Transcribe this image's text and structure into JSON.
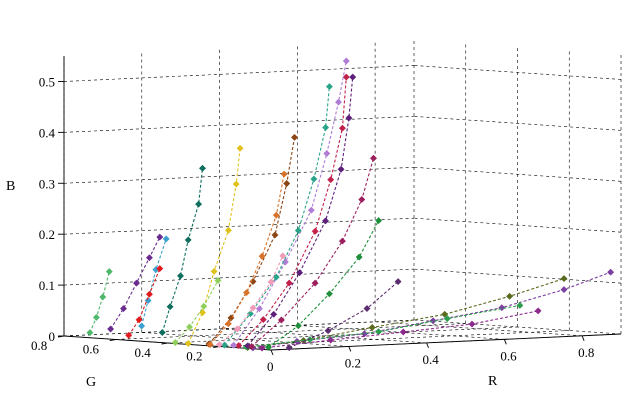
{
  "chart_data": {
    "type": "scatter",
    "projection": "3d",
    "xlabel": "R",
    "ylabel": "G",
    "zlabel": "B",
    "xlim": [
      0,
      0.9
    ],
    "ylim": [
      0,
      0.8
    ],
    "zlim": [
      0,
      0.55
    ],
    "x_ticks": [
      "0",
      "0.2",
      "0.4",
      "0.6",
      "0.8"
    ],
    "y_ticks": [
      "0.2",
      "0.4",
      "0.6",
      "0.8"
    ],
    "z_ticks": [
      "0",
      "0.1",
      "0.2",
      "0.3",
      "0.4",
      "0.5"
    ],
    "grid": true,
    "marker": "diamond",
    "line_style": "dashed",
    "series": [
      {
        "color": "#7b3fa0",
        "points": [
          [
            0.02,
            0.1,
            0.0
          ],
          [
            0.12,
            0.08,
            0.01
          ],
          [
            0.28,
            0.06,
            0.02
          ],
          [
            0.45,
            0.05,
            0.04
          ],
          [
            0.62,
            0.04,
            0.06
          ],
          [
            0.78,
            0.04,
            0.09
          ],
          [
            0.9,
            0.04,
            0.12
          ]
        ]
      },
      {
        "color": "#5a6b1e",
        "points": [
          [
            0.02,
            0.12,
            0.0
          ],
          [
            0.15,
            0.1,
            0.01
          ],
          [
            0.32,
            0.09,
            0.03
          ],
          [
            0.5,
            0.08,
            0.05
          ],
          [
            0.66,
            0.07,
            0.08
          ],
          [
            0.8,
            0.07,
            0.11
          ]
        ]
      },
      {
        "color": "#2e9e4e",
        "points": [
          [
            0.03,
            0.14,
            0.0
          ],
          [
            0.18,
            0.12,
            0.01
          ],
          [
            0.35,
            0.11,
            0.02
          ],
          [
            0.52,
            0.1,
            0.04
          ],
          [
            0.7,
            0.09,
            0.06
          ]
        ]
      },
      {
        "color": "#8c2a8c",
        "points": [
          [
            0.03,
            0.08,
            0.0
          ],
          [
            0.2,
            0.07,
            0.01
          ],
          [
            0.38,
            0.06,
            0.02
          ],
          [
            0.55,
            0.05,
            0.03
          ],
          [
            0.72,
            0.05,
            0.05
          ]
        ]
      },
      {
        "color": "#c21f4a",
        "points": [
          [
            0.05,
            0.2,
            0.0
          ],
          [
            0.1,
            0.18,
            0.05
          ],
          [
            0.16,
            0.17,
            0.12
          ],
          [
            0.22,
            0.16,
            0.22
          ],
          [
            0.26,
            0.16,
            0.32
          ],
          [
            0.29,
            0.16,
            0.42
          ],
          [
            0.3,
            0.16,
            0.52
          ]
        ]
      },
      {
        "color": "#5d1f7a",
        "points": [
          [
            0.06,
            0.18,
            0.0
          ],
          [
            0.12,
            0.17,
            0.06
          ],
          [
            0.18,
            0.16,
            0.14
          ],
          [
            0.24,
            0.15,
            0.24
          ],
          [
            0.28,
            0.15,
            0.34
          ],
          [
            0.3,
            0.15,
            0.44
          ],
          [
            0.31,
            0.15,
            0.52
          ]
        ]
      },
      {
        "color": "#b07cd6",
        "points": [
          [
            0.05,
            0.22,
            0.0
          ],
          [
            0.11,
            0.21,
            0.07
          ],
          [
            0.17,
            0.2,
            0.16
          ],
          [
            0.23,
            0.19,
            0.26
          ],
          [
            0.27,
            0.19,
            0.37
          ],
          [
            0.3,
            0.19,
            0.47
          ],
          [
            0.32,
            0.19,
            0.55
          ]
        ]
      },
      {
        "color": "#2aa58a",
        "points": [
          [
            0.04,
            0.24,
            0.0
          ],
          [
            0.1,
            0.23,
            0.06
          ],
          [
            0.16,
            0.22,
            0.13
          ],
          [
            0.21,
            0.21,
            0.22
          ],
          [
            0.25,
            0.21,
            0.32
          ],
          [
            0.28,
            0.21,
            0.42
          ],
          [
            0.29,
            0.21,
            0.5
          ]
        ]
      },
      {
        "color": "#8b4513",
        "points": [
          [
            0.04,
            0.3,
            0.0
          ],
          [
            0.09,
            0.29,
            0.05
          ],
          [
            0.14,
            0.28,
            0.12
          ],
          [
            0.19,
            0.27,
            0.21
          ],
          [
            0.22,
            0.27,
            0.31
          ],
          [
            0.24,
            0.27,
            0.4
          ]
        ]
      },
      {
        "color": "#e0c21c",
        "points": [
          [
            0.02,
            0.35,
            0.0
          ],
          [
            0.05,
            0.34,
            0.06
          ],
          [
            0.08,
            0.34,
            0.14
          ],
          [
            0.11,
            0.33,
            0.22
          ],
          [
            0.13,
            0.33,
            0.31
          ],
          [
            0.14,
            0.33,
            0.38
          ]
        ]
      },
      {
        "color": "#0f6e5e",
        "points": [
          [
            0.0,
            0.42,
            0.02
          ],
          [
            0.02,
            0.42,
            0.07
          ],
          [
            0.04,
            0.41,
            0.13
          ],
          [
            0.06,
            0.41,
            0.2
          ],
          [
            0.08,
            0.4,
            0.27
          ],
          [
            0.09,
            0.4,
            0.34
          ]
        ]
      },
      {
        "color": "#d9732a",
        "points": [
          [
            0.03,
            0.28,
            0.0
          ],
          [
            0.07,
            0.27,
            0.04
          ],
          [
            0.11,
            0.26,
            0.1
          ],
          [
            0.15,
            0.26,
            0.17
          ],
          [
            0.18,
            0.25,
            0.25
          ],
          [
            0.2,
            0.25,
            0.33
          ]
        ]
      },
      {
        "color": "#3aa0d0",
        "points": [
          [
            0.0,
            0.5,
            0.03
          ],
          [
            0.01,
            0.49,
            0.08
          ],
          [
            0.03,
            0.49,
            0.14
          ],
          [
            0.05,
            0.48,
            0.2
          ]
        ]
      },
      {
        "color": "#9c1f5e",
        "points": [
          [
            0.05,
            0.15,
            0.0
          ],
          [
            0.12,
            0.14,
            0.05
          ],
          [
            0.2,
            0.13,
            0.12
          ],
          [
            0.27,
            0.13,
            0.2
          ],
          [
            0.32,
            0.13,
            0.28
          ],
          [
            0.35,
            0.13,
            0.36
          ]
        ]
      },
      {
        "color": "#1f8f3a",
        "points": [
          [
            0.06,
            0.1,
            0.0
          ],
          [
            0.13,
            0.09,
            0.04
          ],
          [
            0.21,
            0.09,
            0.1
          ],
          [
            0.28,
            0.08,
            0.17
          ],
          [
            0.33,
            0.08,
            0.24
          ]
        ]
      },
      {
        "color": "#f29bb8",
        "points": [
          [
            0.04,
            0.26,
            0.0
          ],
          [
            0.08,
            0.25,
            0.03
          ],
          [
            0.12,
            0.25,
            0.07
          ],
          [
            0.16,
            0.24,
            0.12
          ],
          [
            0.19,
            0.24,
            0.17
          ]
        ]
      },
      {
        "color": "#6a2a8e",
        "points": [
          [
            0.0,
            0.62,
            0.02
          ],
          [
            0.02,
            0.6,
            0.06
          ],
          [
            0.04,
            0.58,
            0.11
          ],
          [
            0.06,
            0.56,
            0.16
          ],
          [
            0.08,
            0.55,
            0.2
          ]
        ]
      },
      {
        "color": "#4fb86a",
        "points": [
          [
            0.0,
            0.7,
            0.01
          ],
          [
            0.01,
            0.69,
            0.04
          ],
          [
            0.02,
            0.68,
            0.08
          ],
          [
            0.03,
            0.67,
            0.13
          ]
        ]
      },
      {
        "color": "#e31a1c",
        "points": [
          [
            0.0,
            0.55,
            0.01
          ],
          [
            0.02,
            0.54,
            0.04
          ],
          [
            0.04,
            0.53,
            0.09
          ],
          [
            0.06,
            0.52,
            0.14
          ]
        ]
      },
      {
        "color": "#8ecf5a",
        "points": [
          [
            0.02,
            0.4,
            0.0
          ],
          [
            0.05,
            0.39,
            0.03
          ],
          [
            0.08,
            0.38,
            0.07
          ],
          [
            0.11,
            0.37,
            0.12
          ]
        ]
      },
      {
        "color": "#5b2c6f",
        "points": [
          [
            0.08,
            0.05,
            0.0
          ],
          [
            0.18,
            0.05,
            0.03
          ],
          [
            0.28,
            0.05,
            0.07
          ],
          [
            0.36,
            0.05,
            0.12
          ]
        ]
      }
    ]
  }
}
